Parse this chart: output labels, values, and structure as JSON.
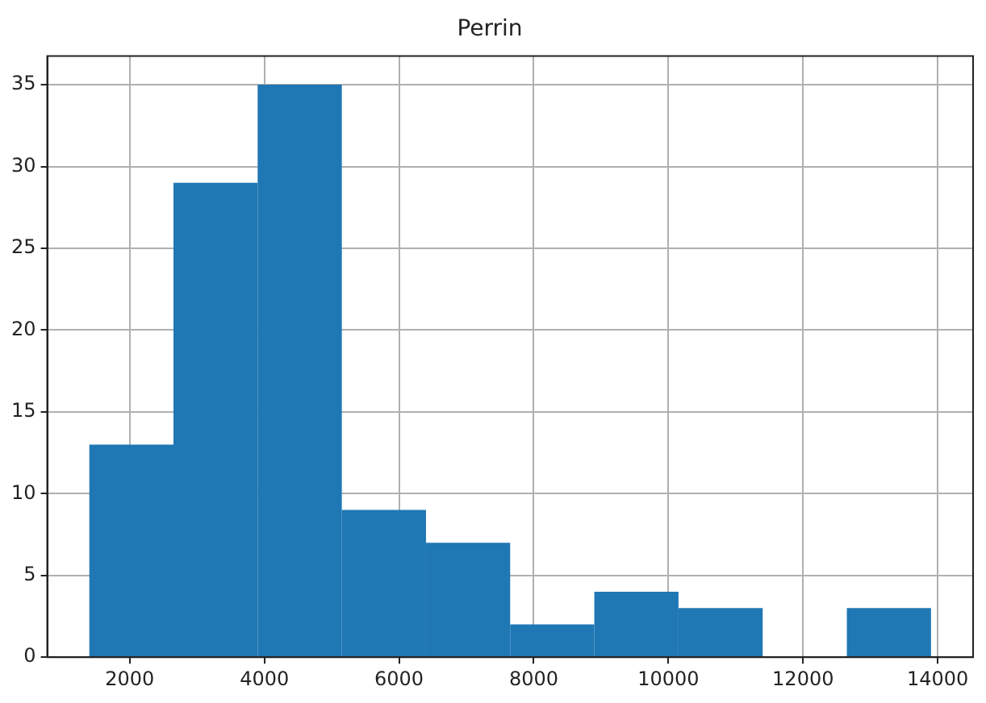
{
  "chart_data": {
    "type": "histogram",
    "title": "Perrin",
    "bins": [
      1400,
      2650,
      3900,
      5150,
      6400,
      7650,
      8900,
      10150,
      11400,
      12650,
      13900
    ],
    "values": [
      13,
      29,
      35,
      9,
      7,
      2,
      4,
      3,
      0,
      3
    ],
    "color": "#1f77b4",
    "xlim": [
      775,
      14525
    ],
    "xticks": [
      2000,
      4000,
      6000,
      8000,
      10000,
      12000,
      14000
    ],
    "ylim": [
      0,
      36.75
    ],
    "yticks": [
      0,
      5,
      10,
      15,
      20,
      25,
      30,
      35
    ],
    "grid": true,
    "legend": false
  }
}
